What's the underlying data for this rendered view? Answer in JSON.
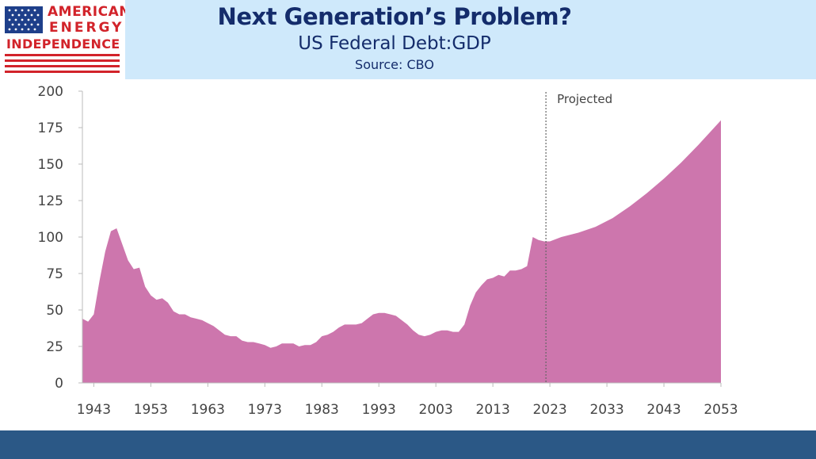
{
  "header": {
    "title": "Next Generation’s Problem?",
    "subtitle": "US Federal  Debt:GDP",
    "source": "Source: CBO"
  },
  "logo": {
    "line1": "AMERICAN",
    "line2": "ENERGY",
    "line3": "INDEPENDENCE",
    "flag_colors": {
      "stripe_red": "#d2232a",
      "canton_blue": "#1e3f8a"
    }
  },
  "colors": {
    "area": "#cd76ad",
    "header_bg": "#cfe9fb",
    "title": "#142c6b",
    "footer": "#2b5886"
  },
  "chart_data": {
    "type": "area",
    "title": "",
    "xlabel": "",
    "ylabel": "",
    "xlim": [
      1941,
      2053
    ],
    "ylim": [
      0,
      200
    ],
    "x_ticks": [
      1943,
      1953,
      1963,
      1973,
      1983,
      1993,
      2003,
      2013,
      2023,
      2033,
      2043,
      2053
    ],
    "y_ticks": [
      0,
      25,
      50,
      75,
      100,
      125,
      150,
      175,
      200
    ],
    "grid": false,
    "legend": "none",
    "annotation": {
      "x": 2023,
      "label": "Projected"
    },
    "series": [
      {
        "x": [
          1941,
          1942,
          1943,
          1944,
          1945,
          1946,
          1947,
          1948,
          1949,
          1950,
          1951,
          1952,
          1953,
          1954,
          1955,
          1956,
          1957,
          1958,
          1959,
          1960,
          1961,
          1962,
          1963,
          1964,
          1965,
          1966,
          1967,
          1968,
          1969,
          1970,
          1971,
          1972,
          1973,
          1974,
          1975,
          1976,
          1977,
          1978,
          1979,
          1980,
          1981,
          1982,
          1983,
          1984,
          1985,
          1986,
          1987,
          1988,
          1989,
          1990,
          1991,
          1992,
          1993,
          1994,
          1995,
          1996,
          1997,
          1998,
          1999,
          2000,
          2001,
          2002,
          2003,
          2004,
          2005,
          2006,
          2007,
          2008,
          2009,
          2010,
          2011,
          2012,
          2013,
          2014,
          2015,
          2016,
          2017,
          2018,
          2019,
          2020,
          2021,
          2022,
          2023,
          2025,
          2028,
          2031,
          2034,
          2037,
          2040,
          2043,
          2046,
          2049,
          2053
        ],
        "values": [
          44,
          42,
          47,
          70,
          90,
          104,
          106,
          95,
          84,
          78,
          79,
          66,
          60,
          57,
          58,
          55,
          49,
          47,
          47,
          45,
          44,
          43,
          41,
          39,
          36,
          33,
          32,
          32,
          29,
          28,
          28,
          27,
          26,
          24,
          25,
          27,
          27,
          27,
          25,
          26,
          26,
          28,
          32,
          33,
          35,
          38,
          40,
          40,
          40,
          41,
          44,
          47,
          48,
          48,
          47,
          46,
          43,
          40,
          36,
          33,
          32,
          33,
          35,
          36,
          36,
          35,
          35,
          40,
          53,
          62,
          67,
          71,
          72,
          74,
          73,
          77,
          77,
          78,
          80,
          100,
          98,
          97,
          97,
          100,
          103,
          107,
          113,
          121,
          130,
          140,
          151,
          163,
          180
        ]
      }
    ]
  }
}
